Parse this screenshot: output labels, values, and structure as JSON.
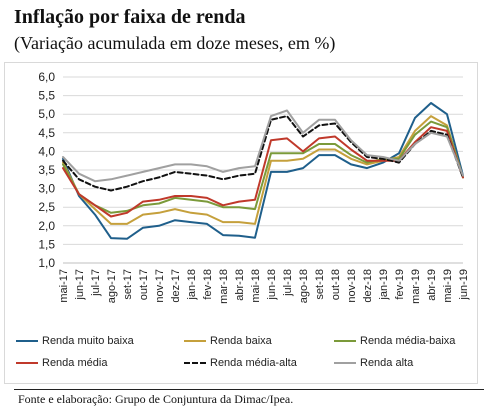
{
  "title": "Inflação por faixa de renda",
  "subtitle": "(Variação acumulada em doze meses, em %)",
  "source": "Fonte e elaboração: Grupo de Conjuntura da Dimac/Ipea.",
  "chart_data": {
    "type": "line",
    "title": "Inflação por faixa de renda",
    "subtitle": "(Variação acumulada em doze meses, em %)",
    "ylim": [
      1.0,
      6.0
    ],
    "yticks": [
      "1,0",
      "1,5",
      "2,0",
      "2,5",
      "3,0",
      "3,5",
      "4,0",
      "4,5",
      "5,0",
      "5,5",
      "6,0"
    ],
    "ytick_values": [
      1.0,
      1.5,
      2.0,
      2.5,
      3.0,
      3.5,
      4.0,
      4.5,
      5.0,
      5.5,
      6.0
    ],
    "grid": "horizontal",
    "legend_position": "bottom",
    "categories": [
      "mai-17",
      "jun-17",
      "jul-17",
      "ago-17",
      "set-17",
      "out-17",
      "nov-17",
      "dez-17",
      "jan-18",
      "fev-18",
      "mar-18",
      "abr-18",
      "mai-18",
      "jun-18",
      "jul-18",
      "ago-18",
      "set-18",
      "out-18",
      "nov-18",
      "dez-18",
      "jan-19",
      "fev-19",
      "mar-19",
      "abr-19",
      "mai-19",
      "jun-19"
    ],
    "series": [
      {
        "name": "Renda muito baixa",
        "color": "#1f5f8b",
        "dash": "solid",
        "values": [
          3.8,
          2.8,
          2.3,
          1.67,
          1.65,
          1.95,
          2.0,
          2.15,
          2.1,
          2.05,
          1.75,
          1.73,
          1.68,
          3.45,
          3.45,
          3.55,
          3.9,
          3.9,
          3.65,
          3.55,
          3.7,
          3.95,
          4.9,
          5.3,
          5.0,
          3.35
        ]
      },
      {
        "name": "Renda baixa",
        "color": "#c5a03c",
        "dash": "solid",
        "values": [
          3.7,
          2.85,
          2.45,
          2.05,
          2.05,
          2.3,
          2.35,
          2.45,
          2.35,
          2.3,
          2.1,
          2.1,
          2.05,
          3.75,
          3.75,
          3.8,
          4.05,
          4.05,
          3.8,
          3.65,
          3.75,
          3.85,
          4.55,
          4.95,
          4.7,
          3.3
        ]
      },
      {
        "name": "Renda média-baixa",
        "color": "#7b9a3a",
        "dash": "solid",
        "values": [
          3.65,
          2.85,
          2.55,
          2.35,
          2.4,
          2.55,
          2.6,
          2.75,
          2.7,
          2.65,
          2.5,
          2.5,
          2.45,
          3.95,
          3.95,
          3.95,
          4.2,
          4.2,
          3.9,
          3.7,
          3.8,
          3.8,
          4.45,
          4.8,
          4.65,
          3.3
        ]
      },
      {
        "name": "Renda média",
        "color": "#c0392b",
        "dash": "solid",
        "values": [
          3.55,
          2.85,
          2.55,
          2.25,
          2.35,
          2.65,
          2.7,
          2.8,
          2.8,
          2.75,
          2.55,
          2.65,
          2.7,
          4.3,
          4.35,
          4.0,
          4.35,
          4.4,
          4.05,
          3.75,
          3.75,
          3.75,
          4.25,
          4.65,
          4.55,
          3.3
        ]
      },
      {
        "name": "Renda média-alta",
        "color": "#111111",
        "dash": "dashed",
        "values": [
          3.75,
          3.25,
          3.05,
          2.95,
          3.05,
          3.2,
          3.3,
          3.45,
          3.4,
          3.35,
          3.25,
          3.35,
          3.4,
          4.85,
          4.95,
          4.4,
          4.7,
          4.75,
          4.25,
          3.85,
          3.8,
          3.7,
          4.2,
          4.55,
          4.45,
          3.3
        ]
      },
      {
        "name": "Renda alta",
        "color": "#a0a0a0",
        "dash": "solid",
        "values": [
          3.85,
          3.4,
          3.2,
          3.25,
          3.35,
          3.45,
          3.55,
          3.65,
          3.65,
          3.6,
          3.45,
          3.55,
          3.6,
          4.95,
          5.1,
          4.5,
          4.85,
          4.85,
          4.3,
          3.9,
          3.85,
          3.75,
          4.2,
          4.5,
          4.4,
          3.35
        ]
      }
    ]
  }
}
